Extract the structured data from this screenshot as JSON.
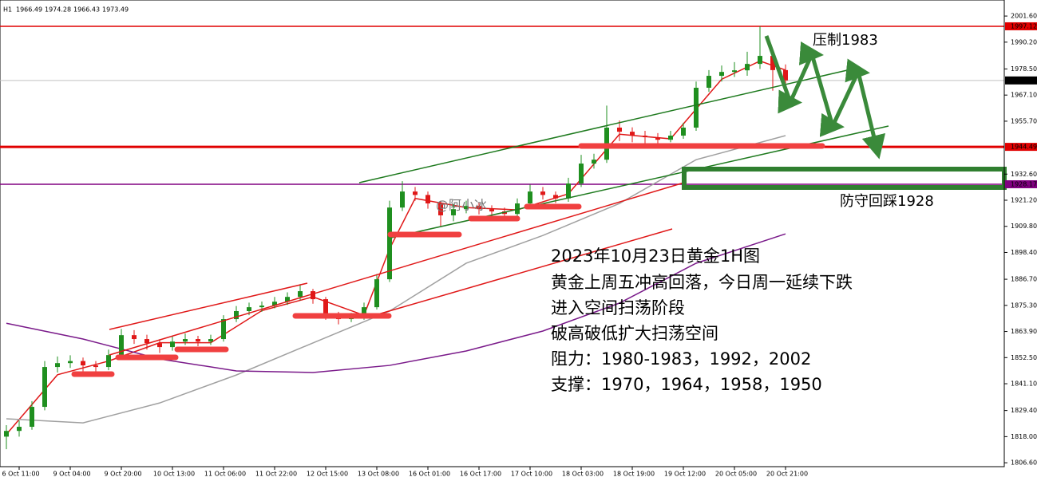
{
  "chart_data": {
    "type": "candlestick",
    "header": {
      "timeframe": "H1",
      "ohlc": [
        1966.49,
        1974.28,
        1966.43,
        1973.49
      ]
    },
    "up_color": "#1f8f1f",
    "down_color": "#e01818",
    "categories": [
      null,
      "6 Oct 11:00",
      null,
      null,
      null,
      "9 Oct 04:00",
      null,
      null,
      null,
      "9 Oct 20:00",
      null,
      null,
      null,
      "10 Oct 13:00",
      null,
      null,
      null,
      "11 Oct 06:00",
      null,
      null,
      null,
      "11 Oct 22:00",
      null,
      null,
      null,
      "12 Oct 15:00",
      null,
      null,
      null,
      "13 Oct 08:00",
      null,
      null,
      null,
      "16 Oct 01:00",
      null,
      null,
      null,
      "16 Oct 17:00",
      null,
      null,
      null,
      "17 Oct 10:00",
      null,
      null,
      null,
      "18 Oct 03:00",
      null,
      null,
      null,
      "18 Oct 19:00",
      null,
      null,
      null,
      "19 Oct 12:00",
      null,
      null,
      null,
      "20 Oct 05:00",
      null,
      null,
      null,
      "20 Oct 21:00",
      null
    ],
    "ohlc": [
      [
        1818.0,
        1823.0,
        1812.5,
        1820.5
      ],
      [
        1820.5,
        1825.0,
        1818.0,
        1822.3
      ],
      [
        1822.3,
        1833.5,
        1821.0,
        1831.0
      ],
      [
        1831.0,
        1851.0,
        1829.5,
        1848.4
      ],
      [
        1848.4,
        1853.0,
        1846.0,
        1850.1
      ],
      [
        1850.1,
        1853.5,
        1848.0,
        1851.0
      ],
      [
        1851.0,
        1852.5,
        1846.5,
        1849.1
      ],
      [
        1849.1,
        1851.0,
        1845.0,
        1848.4
      ],
      [
        1848.4,
        1856.0,
        1847.0,
        1853.6
      ],
      [
        1853.6,
        1865.0,
        1852.5,
        1862.3
      ],
      [
        1862.3,
        1864.5,
        1858.5,
        1860.6
      ],
      [
        1860.6,
        1862.5,
        1856.0,
        1858.8
      ],
      [
        1858.8,
        1860.5,
        1854.5,
        1857.1
      ],
      [
        1857.1,
        1862.0,
        1855.5,
        1859.5
      ],
      [
        1859.5,
        1863.0,
        1858.0,
        1860.6
      ],
      [
        1860.6,
        1862.0,
        1857.5,
        1859.5
      ],
      [
        1859.5,
        1862.5,
        1858.0,
        1860.6
      ],
      [
        1860.6,
        1871.0,
        1859.5,
        1869.3
      ],
      [
        1869.3,
        1875.0,
        1868.0,
        1872.8
      ],
      [
        1872.8,
        1876.5,
        1871.0,
        1874.5
      ],
      [
        1874.5,
        1877.0,
        1872.5,
        1875.2
      ],
      [
        1875.2,
        1879.0,
        1874.0,
        1876.9
      ],
      [
        1876.9,
        1881.0,
        1875.5,
        1879.0
      ],
      [
        1879.0,
        1884.5,
        1877.5,
        1881.5
      ],
      [
        1881.5,
        1882.5,
        1876.0,
        1878.0
      ],
      [
        1878.0,
        1879.0,
        1869.0,
        1871.0
      ],
      [
        1871.0,
        1872.5,
        1867.0,
        1869.3
      ],
      [
        1869.3,
        1872.0,
        1868.0,
        1870.0
      ],
      [
        1870.0,
        1876.5,
        1869.0,
        1874.5
      ],
      [
        1874.5,
        1889.0,
        1873.5,
        1886.7
      ],
      [
        1886.7,
        1921.0,
        1885.5,
        1918.0
      ],
      [
        1918.0,
        1929.5,
        1916.5,
        1925.0
      ],
      [
        1925.0,
        1927.0,
        1921.0,
        1923.5
      ],
      [
        1923.5,
        1925.0,
        1917.5,
        1919.8
      ],
      [
        1919.8,
        1921.0,
        1909.5,
        1914.6
      ],
      [
        1914.6,
        1919.5,
        1912.0,
        1917.3
      ],
      [
        1917.3,
        1921.0,
        1915.5,
        1918.7
      ],
      [
        1918.7,
        1920.0,
        1915.0,
        1917.3
      ],
      [
        1917.3,
        1919.0,
        1913.5,
        1916.3
      ],
      [
        1916.3,
        1918.0,
        1912.5,
        1915.2
      ],
      [
        1915.2,
        1922.0,
        1914.0,
        1919.8
      ],
      [
        1919.8,
        1928.0,
        1918.5,
        1925.0
      ],
      [
        1925.0,
        1927.0,
        1921.5,
        1923.5
      ],
      [
        1923.5,
        1925.0,
        1920.0,
        1922.0
      ],
      [
        1922.0,
        1931.0,
        1920.5,
        1928.5
      ],
      [
        1928.5,
        1941.0,
        1927.0,
        1937.2
      ],
      [
        1937.2,
        1941.5,
        1935.0,
        1938.9
      ],
      [
        1938.9,
        1962.5,
        1937.5,
        1952.9
      ],
      [
        1952.9,
        1956.0,
        1947.0,
        1951.1
      ],
      [
        1951.1,
        1953.0,
        1946.5,
        1949.4
      ],
      [
        1949.4,
        1951.5,
        1946.0,
        1948.7
      ],
      [
        1948.7,
        1950.5,
        1945.5,
        1947.6
      ],
      [
        1947.6,
        1951.5,
        1946.5,
        1949.4
      ],
      [
        1949.4,
        1955.0,
        1948.0,
        1952.9
      ],
      [
        1952.9,
        1973.0,
        1951.5,
        1970.3
      ],
      [
        1970.3,
        1978.0,
        1968.5,
        1975.5
      ],
      [
        1975.5,
        1980.0,
        1973.0,
        1977.2
      ],
      [
        1977.2,
        1981.5,
        1975.0,
        1977.9
      ],
      [
        1977.9,
        1986.0,
        1975.5,
        1980.7
      ],
      [
        1980.7,
        1997.1,
        1978.5,
        1984.2
      ],
      [
        1984.2,
        1987.0,
        1969.0,
        1978.0
      ],
      [
        1978.0,
        1980.5,
        1966.4,
        1973.5
      ]
    ],
    "lines": [
      {
        "color": "#e01818",
        "x": [
          0,
          4,
          8,
          12,
          16,
          20,
          24,
          28,
          30,
          32,
          36,
          40,
          44,
          48,
          52,
          56,
          59,
          61
        ],
        "values": [
          1819,
          1845,
          1851,
          1859,
          1859,
          1873,
          1879,
          1871,
          1900,
          1922,
          1918,
          1917,
          1924,
          1950,
          1948,
          1974,
          1982,
          1978
        ]
      },
      {
        "color": "#a0a0a0",
        "x": [
          0,
          6,
          12,
          18,
          24,
          30,
          36,
          42,
          48,
          54,
          61
        ],
        "values": [
          1825.8,
          1824.0,
          1832.7,
          1844.9,
          1858.9,
          1872.8,
          1893.7,
          1905.8,
          1919.8,
          1938.9,
          1949.4
        ]
      },
      {
        "color": "#7a1a8a",
        "x": [
          0,
          6,
          12,
          18,
          24,
          30,
          36,
          42,
          48,
          54,
          61
        ],
        "values": [
          1867.5,
          1860.6,
          1851.9,
          1846.7,
          1846.0,
          1849.1,
          1855.4,
          1864.1,
          1876.3,
          1893.7,
          1906.5
        ]
      }
    ],
    "levels": [
      {
        "value": 1997.12,
        "label": "1997.12",
        "color": "#e00000",
        "width": 1.5
      },
      {
        "value": 1944.49,
        "label": "1944.49",
        "color": "#e00000",
        "width": 3
      },
      {
        "value": 1928.17,
        "label": "1928.17",
        "color": "#800080",
        "width": 1.5
      },
      {
        "value": 1973.49,
        "label": "1973.49",
        "color": "#c0c0c0",
        "width": 1
      }
    ],
    "ylim": [
      1804.9,
      2008.6
    ],
    "yticks": [
      {
        "value": 1806.6,
        "label": "1806.60"
      },
      {
        "value": 1818.0,
        "label": "1818.00"
      },
      {
        "value": 1829.4,
        "label": "1829.40"
      },
      {
        "value": 1841.1,
        "label": "1841.10"
      },
      {
        "value": 1852.5,
        "label": "1852.50"
      },
      {
        "value": 1863.9,
        "label": "1863.90"
      },
      {
        "value": 1875.3,
        "label": "1875.30"
      },
      {
        "value": 1886.7,
        "label": "1886.70"
      },
      {
        "value": 1898.4,
        "label": "1898.40"
      },
      {
        "value": 1909.8,
        "label": "1909.80"
      },
      {
        "value": 1921.2,
        "label": "1921.20"
      },
      {
        "value": 1932.6,
        "label": "1932.60"
      },
      {
        "value": 1955.7,
        "label": "1955.70"
      },
      {
        "value": 1967.1,
        "label": "1967.10"
      },
      {
        "value": 1978.5,
        "label": "1978.50"
      },
      {
        "value": 1990.2,
        "label": "1990.20"
      },
      {
        "value": 2001.6,
        "label": "2001.60"
      }
    ],
    "annotations": {
      "resistance": "压制1983",
      "support": "防守回踩1928",
      "watermark": "@阿小冰",
      "notes": [
        "2023年10月23日黄金1H图",
        "黄金上周五冲高回落，今日周一延续下跌",
        "进入空间扫荡阶段",
        "破高破低扩大扫荡空间",
        "阻力：1980-1983，1992，2002",
        "支撑：1970，1964，1958，1950"
      ]
    }
  }
}
